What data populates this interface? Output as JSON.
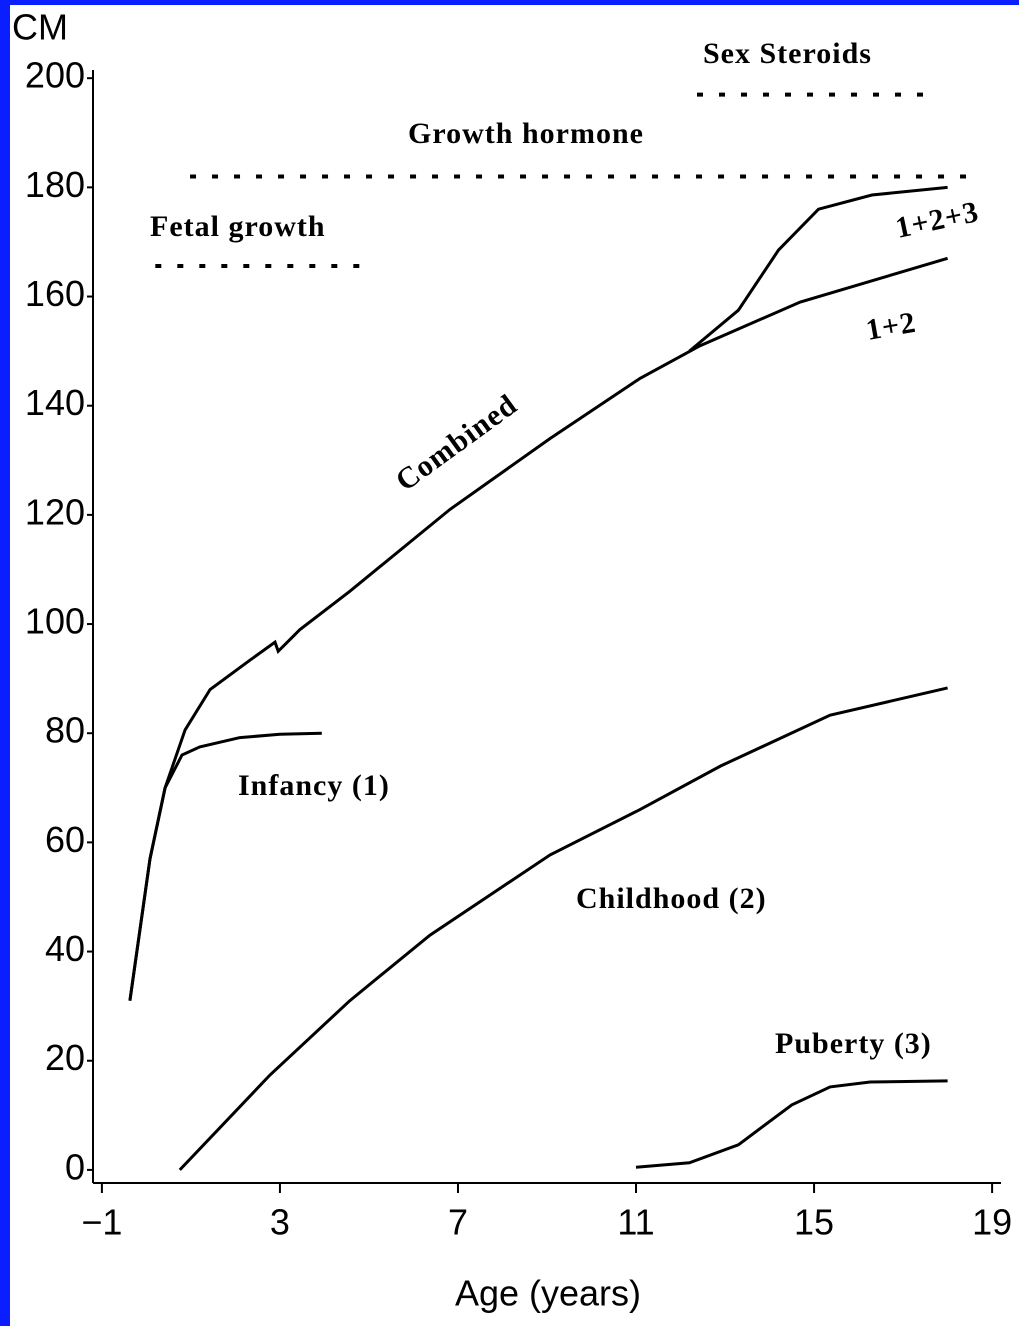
{
  "chart_data": {
    "type": "line",
    "y_label": "CM",
    "x_label": "Age (years)",
    "xlim": [
      -1.2,
      19.2
    ],
    "xticks": [
      {
        "value": -1,
        "label": "−1"
      },
      3,
      7,
      11,
      15,
      19
    ],
    "ylim": [
      -2.4,
      201.5
    ],
    "yticks": [
      0,
      20,
      40,
      60,
      80,
      100,
      120,
      140,
      160,
      180,
      200
    ],
    "series": [
      {
        "name": "Infancy (1)",
        "color": "#000000",
        "x": [
          -0.37,
          0.08,
          0.42,
          0.8,
          1.2,
          2.1,
          3.0,
          3.94
        ],
        "values": [
          31,
          57,
          70,
          76,
          77.5,
          79.2,
          79.8,
          80
        ]
      },
      {
        "name": "Childhood (2)",
        "color": "#000000",
        "x": [
          0.75,
          2.78,
          4.57,
          6.37,
          9.07,
          11.09,
          12.9,
          15.36,
          18.0
        ],
        "values": [
          0,
          17.4,
          31,
          43,
          57.7,
          66,
          74,
          83.3,
          88.3
        ]
      },
      {
        "name": "Puberty (3)",
        "color": "#000000",
        "x": [
          11.0,
          12.2,
          13.3,
          14.5,
          15.36,
          16.26,
          18.0
        ],
        "values": [
          0.5,
          1.3,
          4.6,
          11.9,
          15.2,
          16.1,
          16.3
        ]
      },
      {
        "name": "Combined",
        "end_label": "1+2",
        "color": "#000000",
        "x": [
          -0.37,
          0.08,
          0.42,
          0.87,
          1.43,
          2.33,
          2.89,
          2.96,
          3.45,
          4.57,
          6.82,
          9.07,
          11.09,
          12.44,
          14.69,
          18.0
        ],
        "values": [
          31,
          57,
          70,
          80.6,
          88,
          93.4,
          96.7,
          95,
          99,
          106,
          121,
          134,
          145,
          151,
          159,
          167
        ]
      },
      {
        "name": "1+2+3",
        "color": "#000000",
        "x": [
          12.2,
          13.3,
          14.2,
          15.1,
          16.3,
          18.0
        ],
        "values": [
          150,
          157.5,
          168.5,
          176,
          178.6,
          180
        ]
      }
    ],
    "phases": [
      {
        "label": "Fetal growth",
        "x": [
          0.2,
          4.8
        ],
        "y": 165.6
      },
      {
        "label": "Growth hormone",
        "x": [
          0.98,
          18.6
        ],
        "y": 182
      },
      {
        "label": "Sex Steroids",
        "x": [
          12.37,
          17.76
        ],
        "y": 197
      }
    ]
  }
}
